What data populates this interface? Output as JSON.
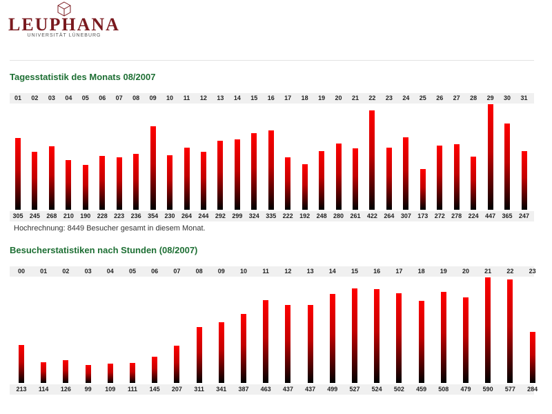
{
  "logo": {
    "name": "LEUPHANA",
    "subtitle": "UNIVERSITÄT LÜNEBURG"
  },
  "colors": {
    "title": "#1e6f34",
    "bar_top": "#ff0000",
    "bar_bottom": "#000000",
    "brand": "#7a1a1f"
  },
  "daily": {
    "title": "Tagesstatistik des Monats 08/2007",
    "note": "Hochrechnung: 8449 Besucher gesamt in diesem Monat."
  },
  "hourly": {
    "title": "Besucherstatistiken nach Stunden (08/2007)"
  },
  "chart_data": [
    {
      "type": "bar",
      "title": "Tagesstatistik des Monats 08/2007",
      "categories": [
        "01",
        "02",
        "03",
        "04",
        "05",
        "06",
        "07",
        "08",
        "09",
        "10",
        "11",
        "12",
        "13",
        "14",
        "15",
        "16",
        "17",
        "18",
        "19",
        "20",
        "21",
        "22",
        "23",
        "24",
        "25",
        "26",
        "27",
        "28",
        "29",
        "30",
        "31"
      ],
      "values": [
        305,
        245,
        268,
        210,
        190,
        228,
        223,
        236,
        354,
        230,
        264,
        244,
        292,
        299,
        324,
        335,
        222,
        192,
        248,
        280,
        261,
        422,
        264,
        307,
        173,
        272,
        278,
        224,
        447,
        365,
        247
      ],
      "ylim": [
        0,
        447
      ],
      "grid": false
    },
    {
      "type": "bar",
      "title": "Besucherstatistiken nach Stunden (08/2007)",
      "categories": [
        "00",
        "01",
        "02",
        "03",
        "04",
        "05",
        "06",
        "07",
        "08",
        "09",
        "10",
        "11",
        "12",
        "13",
        "14",
        "15",
        "16",
        "17",
        "18",
        "19",
        "20",
        "21",
        "22",
        "23"
      ],
      "values": [
        213,
        114,
        126,
        99,
        109,
        111,
        145,
        207,
        311,
        341,
        387,
        463,
        437,
        437,
        499,
        527,
        524,
        502,
        459,
        508,
        479,
        590,
        577,
        284
      ],
      "ylim": [
        0,
        590
      ],
      "grid": false
    }
  ]
}
